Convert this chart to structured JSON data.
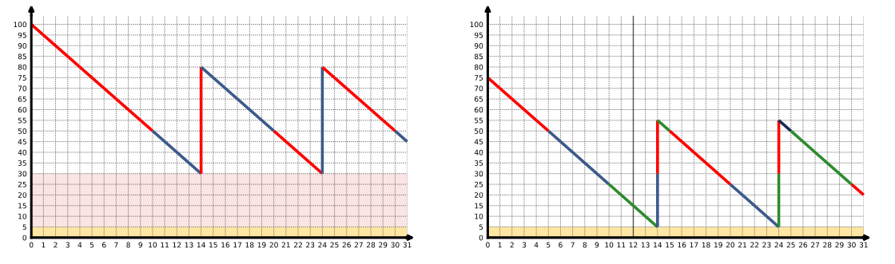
{
  "chart_data": [
    {
      "type": "line",
      "xlim": [
        0,
        31
      ],
      "ylim": [
        0,
        104
      ],
      "xticks": [
        0,
        1,
        2,
        3,
        4,
        5,
        6,
        7,
        8,
        9,
        10,
        11,
        12,
        13,
        14,
        15,
        16,
        17,
        18,
        19,
        20,
        21,
        22,
        23,
        24,
        25,
        26,
        27,
        28,
        29,
        30,
        31
      ],
      "yticks": [
        0,
        5,
        10,
        15,
        20,
        25,
        30,
        35,
        40,
        45,
        50,
        55,
        60,
        65,
        70,
        75,
        80,
        85,
        90,
        95,
        100
      ],
      "grid": true,
      "line_style": "solid",
      "marker": "none",
      "bands": [
        {
          "axis": "y",
          "from": 5,
          "to": 30,
          "color": "#fbe4e4"
        },
        {
          "axis": "y",
          "from": 0,
          "to": 5,
          "color": "#ffe7a3"
        }
      ],
      "series": [
        {
          "color": "#ff0000",
          "x": [
            0,
            10
          ],
          "values": [
            100,
            50
          ]
        },
        {
          "color": "#3c5a8a",
          "x": [
            10,
            14
          ],
          "values": [
            50,
            30
          ]
        },
        {
          "color": "#ff0000",
          "x": [
            14,
            14
          ],
          "values": [
            30,
            80
          ]
        },
        {
          "color": "#3c5a8a",
          "x": [
            14,
            20
          ],
          "values": [
            80,
            50
          ]
        },
        {
          "color": "#ff0000",
          "x": [
            20,
            24
          ],
          "values": [
            50,
            30
          ]
        },
        {
          "color": "#3c5a8a",
          "x": [
            24,
            24
          ],
          "values": [
            30,
            80
          ]
        },
        {
          "color": "#ff0000",
          "x": [
            24,
            30
          ],
          "values": [
            80,
            50
          ]
        },
        {
          "color": "#3c5a8a",
          "x": [
            30,
            31
          ],
          "values": [
            50,
            45
          ]
        }
      ]
    },
    {
      "type": "line",
      "xlim": [
        0,
        31
      ],
      "ylim": [
        0,
        104
      ],
      "xticks": [
        0,
        1,
        2,
        3,
        4,
        5,
        6,
        7,
        8,
        9,
        10,
        11,
        12,
        13,
        14,
        15,
        16,
        17,
        18,
        19,
        20,
        21,
        22,
        23,
        24,
        25,
        26,
        27,
        28,
        29,
        30,
        31
      ],
      "yticks": [
        0,
        5,
        10,
        15,
        20,
        25,
        30,
        35,
        40,
        45,
        50,
        55,
        60,
        65,
        70,
        75,
        80,
        85,
        90,
        95,
        100
      ],
      "grid": true,
      "line_style": "solid",
      "marker": "none",
      "bands": [
        {
          "axis": "y",
          "from": 0,
          "to": 5,
          "color": "#ffe7a3"
        }
      ],
      "ref_lines": [
        {
          "axis": "x",
          "value": 12,
          "color": "#555555"
        }
      ],
      "series": [
        {
          "color": "#ff0000",
          "x": [
            0,
            5
          ],
          "values": [
            75,
            50
          ]
        },
        {
          "color": "#3c5a8a",
          "x": [
            5,
            10
          ],
          "values": [
            50,
            25
          ]
        },
        {
          "color": "#2e8b2e",
          "x": [
            10,
            14
          ],
          "values": [
            25,
            5
          ]
        },
        {
          "color": "#3c5a8a",
          "x": [
            14,
            14
          ],
          "values": [
            5,
            30
          ]
        },
        {
          "color": "#ff0000",
          "x": [
            14,
            14
          ],
          "values": [
            30,
            55
          ]
        },
        {
          "color": "#2e8b2e",
          "x": [
            14,
            15
          ],
          "values": [
            55,
            50
          ]
        },
        {
          "color": "#ff0000",
          "x": [
            15,
            20
          ],
          "values": [
            50,
            25
          ]
        },
        {
          "color": "#3c5a8a",
          "x": [
            20,
            24
          ],
          "values": [
            25,
            5
          ]
        },
        {
          "color": "#2e8b2e",
          "x": [
            24,
            24
          ],
          "values": [
            5,
            30
          ]
        },
        {
          "color": "#ff0000",
          "x": [
            24,
            24
          ],
          "values": [
            30,
            55
          ]
        },
        {
          "color": "#1c2a55",
          "x": [
            24,
            25
          ],
          "values": [
            55,
            50
          ]
        },
        {
          "color": "#2e8b2e",
          "x": [
            25,
            30
          ],
          "values": [
            50,
            25
          ]
        },
        {
          "color": "#ff0000",
          "x": [
            30,
            31
          ],
          "values": [
            25,
            20
          ]
        }
      ]
    }
  ]
}
